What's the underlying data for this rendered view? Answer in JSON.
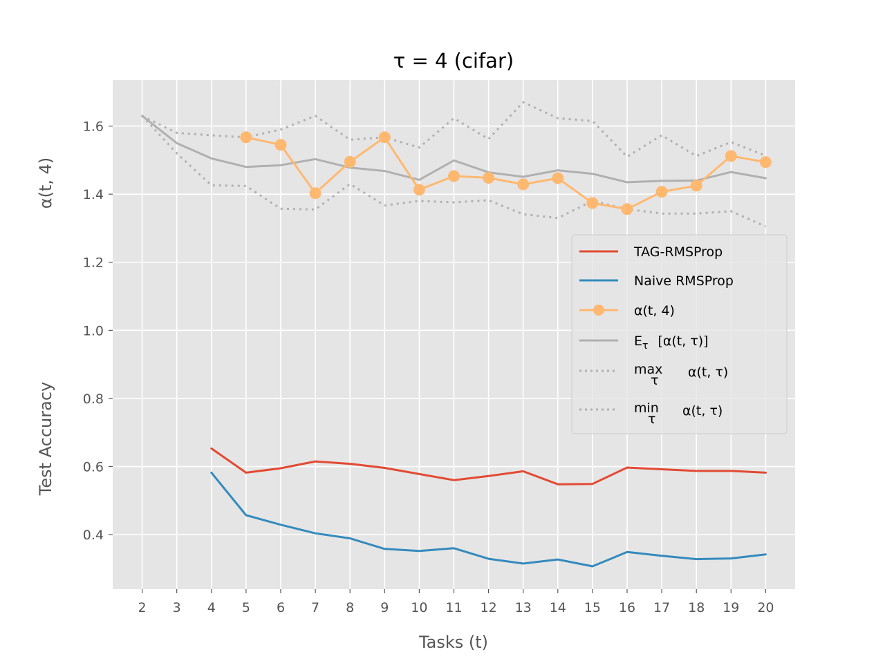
{
  "chart_data": {
    "type": "line",
    "title": "τ = 4 (cifar)",
    "xlabel": "Tasks (t)",
    "ylabel_top": "α(t, 4)",
    "ylabel_bottom": "Test Accuracy",
    "xlim": [
      1.15,
      20.85
    ],
    "ylim": [
      0.24,
      1.735
    ],
    "x_ticks": [
      2,
      3,
      4,
      5,
      6,
      7,
      8,
      9,
      10,
      11,
      12,
      13,
      14,
      15,
      16,
      17,
      18,
      19,
      20
    ],
    "y_ticks": [
      0.4,
      0.6,
      0.8,
      1.0,
      1.2,
      1.4,
      1.6
    ],
    "y_tick_labels": [
      "0.4",
      "0.6",
      "0.8",
      "1.0",
      "1.2",
      "1.4",
      "1.6"
    ],
    "grid": true,
    "legend_position": "center-right",
    "series": [
      {
        "name": "TAG-RMSProp",
        "color": "#e24a33",
        "style": "solid",
        "x": [
          4,
          5,
          6,
          7,
          8,
          9,
          10,
          11,
          12,
          13,
          14,
          15,
          16,
          17,
          18,
          19,
          20
        ],
        "values": [
          0.653,
          0.582,
          0.595,
          0.615,
          0.608,
          0.596,
          0.578,
          0.56,
          0.572,
          0.586,
          0.548,
          0.549,
          0.597,
          0.592,
          0.587,
          0.587,
          0.582
        ]
      },
      {
        "name": "Naive RMSProp",
        "color": "#348abd",
        "style": "solid",
        "x": [
          4,
          5,
          6,
          7,
          8,
          9,
          10,
          11,
          12,
          13,
          14,
          15,
          16,
          17,
          18,
          19,
          20
        ],
        "values": [
          0.582,
          0.457,
          0.429,
          0.404,
          0.389,
          0.358,
          0.352,
          0.36,
          0.329,
          0.315,
          0.327,
          0.307,
          0.349,
          0.338,
          0.328,
          0.33,
          0.342
        ]
      },
      {
        "name": "α(t, 4)",
        "color": "#ffb870",
        "style": "solid-markers",
        "x": [
          5,
          6,
          7,
          8,
          9,
          10,
          11,
          12,
          13,
          14,
          15,
          16,
          17,
          18,
          19,
          20
        ],
        "values": [
          1.567,
          1.545,
          1.403,
          1.495,
          1.567,
          1.413,
          1.453,
          1.448,
          1.429,
          1.447,
          1.374,
          1.356,
          1.407,
          1.425,
          1.512,
          1.494
        ]
      },
      {
        "name": "E_τ [α(t, τ)]",
        "legend_base": "E",
        "legend_sub": "τ",
        "legend_rest": "[α(t, τ)]",
        "color": "#b0b0b0",
        "style": "solid",
        "x": [
          2,
          3,
          4,
          5,
          6,
          7,
          8,
          9,
          10,
          11,
          12,
          13,
          14,
          15,
          16,
          17,
          18,
          19,
          20
        ],
        "values": [
          1.63,
          1.55,
          1.505,
          1.48,
          1.485,
          1.503,
          1.478,
          1.468,
          1.442,
          1.499,
          1.464,
          1.451,
          1.47,
          1.46,
          1.435,
          1.439,
          1.44,
          1.465,
          1.447
        ]
      },
      {
        "name": "max_τ α(t, τ)",
        "legend_base": "max",
        "legend_sub": "τ",
        "legend_rest": "α(t, τ)",
        "color": "#b0b0b0",
        "style": "dotted",
        "x": [
          2,
          3,
          4,
          5,
          6,
          7,
          8,
          9,
          10,
          11,
          12,
          13,
          14,
          15,
          16,
          17,
          18,
          19,
          20
        ],
        "values": [
          1.63,
          1.58,
          1.573,
          1.567,
          1.59,
          1.63,
          1.56,
          1.567,
          1.537,
          1.623,
          1.562,
          1.67,
          1.623,
          1.615,
          1.51,
          1.573,
          1.512,
          1.553,
          1.513
        ]
      },
      {
        "name": "min_τ α(t, τ)",
        "legend_base": "min",
        "legend_sub": "τ",
        "legend_rest": "α(t, τ)",
        "color": "#b0b0b0",
        "style": "dotted",
        "x": [
          2,
          3,
          4,
          5,
          6,
          7,
          8,
          9,
          10,
          11,
          12,
          13,
          14,
          15,
          16,
          17,
          18,
          19,
          20
        ],
        "values": [
          1.63,
          1.52,
          1.426,
          1.424,
          1.357,
          1.355,
          1.43,
          1.367,
          1.38,
          1.376,
          1.382,
          1.341,
          1.33,
          1.38,
          1.356,
          1.343,
          1.343,
          1.35,
          1.305
        ]
      }
    ]
  }
}
